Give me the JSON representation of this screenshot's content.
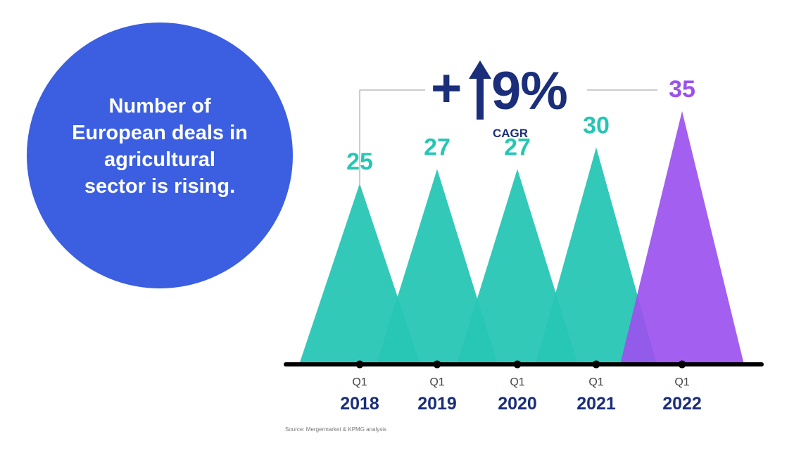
{
  "title": "Number of European deals in agricultural sector is rising.",
  "cagr": {
    "sign": "+",
    "value": "9%",
    "label": "CAGR"
  },
  "source": "Source: Mergermarket & KPMG analysis",
  "colors": {
    "circle": "#3B5FE0",
    "teal": "#27C6B4",
    "purple": "#9B51EE",
    "navy": "#1A2E7A",
    "axis": "#000000",
    "connector": "#9A9A9A",
    "quarter": "#444444"
  },
  "icons": {
    "cagr_arrow": "up-arrow-icon"
  },
  "chart_data": {
    "type": "area",
    "title": "Number of European deals in agricultural sector is rising.",
    "categories": [
      "2018",
      "2019",
      "2020",
      "2021",
      "2022"
    ],
    "quarter_labels": [
      "Q1",
      "Q1",
      "Q1",
      "Q1",
      "Q1"
    ],
    "values": [
      25,
      27,
      27,
      30,
      35
    ],
    "value_labels": [
      "25",
      "27",
      "27",
      "30",
      "35"
    ],
    "highlight_index": 4,
    "ylim": [
      0,
      35
    ],
    "grid": false,
    "legend": "none"
  }
}
